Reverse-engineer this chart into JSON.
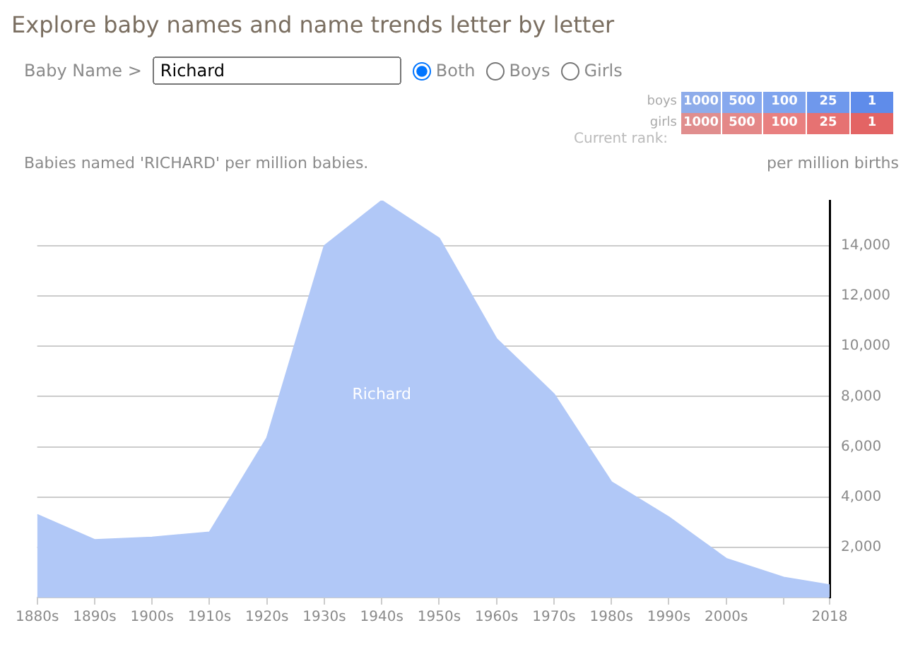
{
  "chart_data": {
    "type": "area",
    "title": "Explore baby names and name trends letter by letter",
    "subtitle": "Babies named 'RICHARD' per million babies.",
    "ylabel": "per million births",
    "x": [
      1880,
      1890,
      1900,
      1910,
      1920,
      1930,
      1940,
      1950,
      1960,
      1970,
      1980,
      1990,
      2000,
      2010,
      2018
    ],
    "series": [
      {
        "name": "Richard",
        "color": "#b1c8f7",
        "values": [
          3300,
          2300,
          2400,
          2600,
          6350,
          14000,
          15800,
          14300,
          10300,
          8100,
          4600,
          3200,
          1550,
          800,
          500
        ]
      }
    ],
    "xlim": [
      1880,
      2018
    ],
    "xticks": [
      {
        "value": 1880,
        "label": "1880s"
      },
      {
        "value": 1890,
        "label": "1890s"
      },
      {
        "value": 1900,
        "label": "1900s"
      },
      {
        "value": 1910,
        "label": "1910s"
      },
      {
        "value": 1920,
        "label": "1920s"
      },
      {
        "value": 1930,
        "label": "1930s"
      },
      {
        "value": 1940,
        "label": "1940s"
      },
      {
        "value": 1950,
        "label": "1950s"
      },
      {
        "value": 1960,
        "label": "1960s"
      },
      {
        "value": 1970,
        "label": "1970s"
      },
      {
        "value": 1980,
        "label": "1980s"
      },
      {
        "value": 1990,
        "label": "1990s"
      },
      {
        "value": 2000,
        "label": "2000s"
      },
      {
        "value": 2010,
        "label": null
      },
      {
        "value": 2018,
        "label": "2018"
      }
    ],
    "ylim": [
      0,
      15800
    ],
    "yticks": [
      {
        "value": 2000,
        "label": "2,000"
      },
      {
        "value": 4000,
        "label": "4,000"
      },
      {
        "value": 6000,
        "label": "6,000"
      },
      {
        "value": 8000,
        "label": "8,000"
      },
      {
        "value": 10000,
        "label": "10,000"
      },
      {
        "value": 12000,
        "label": "12,000"
      },
      {
        "value": 14000,
        "label": "14,000"
      }
    ],
    "grid": "y",
    "legend": false,
    "marker": "none",
    "annotations": [
      "Baby Name >",
      "Richard",
      "Both",
      "Boys",
      "Girls",
      "boys",
      "girls",
      "Current rank:",
      "1000",
      "500",
      "100",
      "25",
      "1"
    ]
  }
}
